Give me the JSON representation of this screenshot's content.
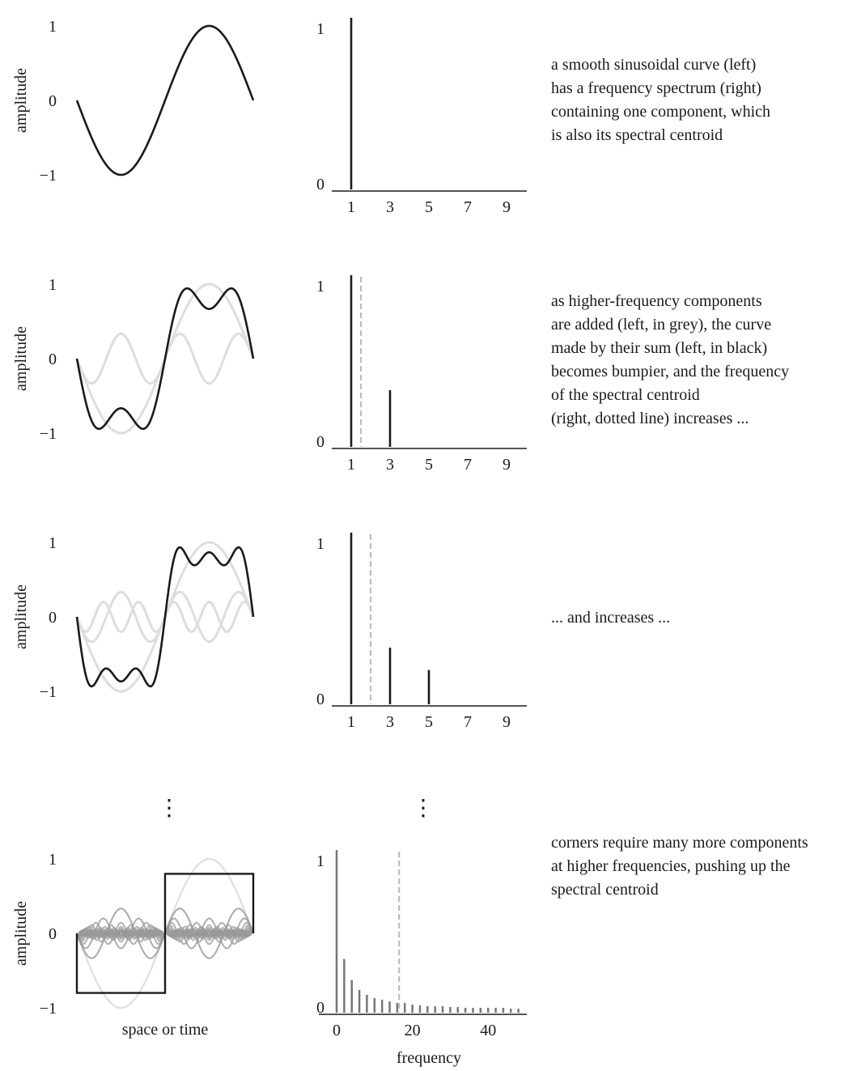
{
  "chart_data": [
    {
      "type": "line",
      "panel": "waveform",
      "harmonics": [
        1
      ],
      "ylabel": "amplitude",
      "yticks": [
        "1",
        "0",
        "−1"
      ],
      "ylim": [
        -1,
        1
      ],
      "series": [
        {
          "role": "sum",
          "color": "#1a1a1a"
        }
      ]
    },
    {
      "type": "bar",
      "panel": "spectrum",
      "x": [
        1
      ],
      "values": [
        1
      ],
      "centroid": null,
      "xticks": [
        "1",
        "3",
        "5",
        "7",
        "9"
      ],
      "yticks": [
        "0",
        "1"
      ],
      "xlim": [
        0,
        10
      ],
      "ylim": [
        0,
        1
      ]
    },
    {
      "type": "line",
      "panel": "waveform",
      "harmonics": [
        1,
        3
      ],
      "ylabel": "amplitude",
      "yticks": [
        "1",
        "0",
        "−1"
      ],
      "ylim": [
        -1,
        1
      ],
      "series": [
        {
          "role": "components",
          "color": "#dddddd"
        },
        {
          "role": "sum",
          "color": "#1a1a1a"
        }
      ]
    },
    {
      "type": "bar",
      "panel": "spectrum",
      "x": [
        1,
        3
      ],
      "values": [
        1,
        0.33
      ],
      "centroid": 1.5,
      "xticks": [
        "1",
        "3",
        "5",
        "7",
        "9"
      ],
      "yticks": [
        "0",
        "1"
      ],
      "xlim": [
        0,
        10
      ],
      "ylim": [
        0,
        1
      ]
    },
    {
      "type": "line",
      "panel": "waveform",
      "harmonics": [
        1,
        3,
        5
      ],
      "ylabel": "amplitude",
      "yticks": [
        "1",
        "0",
        "−1"
      ],
      "ylim": [
        -1,
        1
      ],
      "series": [
        {
          "role": "components",
          "color": "#dddddd"
        },
        {
          "role": "sum",
          "color": "#1a1a1a"
        }
      ]
    },
    {
      "type": "bar",
      "panel": "spectrum",
      "x": [
        1,
        3,
        5
      ],
      "values": [
        1,
        0.33,
        0.2
      ],
      "centroid": 2,
      "xticks": [
        "1",
        "3",
        "5",
        "7",
        "9"
      ],
      "yticks": [
        "0",
        "1"
      ],
      "xlim": [
        0,
        10
      ],
      "ylim": [
        0,
        1
      ]
    },
    {
      "type": "line",
      "panel": "waveform",
      "harmonics": "odd harmonics up to 49",
      "ylabel": "amplitude",
      "xlabel": "space or time",
      "yticks": [
        "1",
        "0",
        "−1"
      ],
      "ylim": [
        -1,
        1
      ],
      "square_level": 0.8,
      "series": [
        {
          "role": "components",
          "color": "#d8d8d8"
        },
        {
          "role": "sum",
          "color": "#1a1a1a"
        }
      ]
    },
    {
      "type": "bar",
      "panel": "spectrum",
      "x": [
        0,
        2,
        4,
        6,
        8,
        10,
        12,
        14,
        16,
        18,
        20,
        22,
        24,
        26,
        28,
        30,
        32,
        34,
        36,
        38,
        40,
        42,
        44,
        46,
        48
      ],
      "values": [
        1,
        0.33,
        0.2,
        0.14,
        0.11,
        0.09,
        0.08,
        0.07,
        0.06,
        0.06,
        0.05,
        0.045,
        0.04,
        0.04,
        0.04,
        0.035,
        0.035,
        0.03,
        0.03,
        0.03,
        0.03,
        0.03,
        0.03,
        0.025,
        0.025
      ],
      "centroid": 16.5,
      "xticks": [
        "0",
        "20",
        "40"
      ],
      "xtick_values": [
        0,
        20,
        40
      ],
      "yticks": [
        "0",
        "1"
      ],
      "xlabel": "frequency",
      "xlim": [
        0,
        49
      ],
      "ylim": [
        0,
        1
      ]
    }
  ],
  "captions": [
    [
      "a smooth sinusoidal curve (left)",
      "has a frequency spectrum (right)",
      "containing one component, which",
      "is also its spectral centroid"
    ],
    [
      "as higher-frequency components",
      "are added (left, in grey), the curve",
      "made by their sum (left, in black)",
      "becomes bumpier, and the frequency",
      "of the spectral centroid",
      "(right, dotted line) increases ..."
    ],
    [
      "... and increases ..."
    ],
    [
      "corners require many more components",
      "at higher frequencies, pushing up the",
      "spectral centroid"
    ]
  ],
  "ellipsis": "⋮",
  "colors": {
    "ink": "#1a1a1a",
    "component": "#dddddd",
    "centroid": "#bdbdbd",
    "bar_light": "#777777"
  }
}
